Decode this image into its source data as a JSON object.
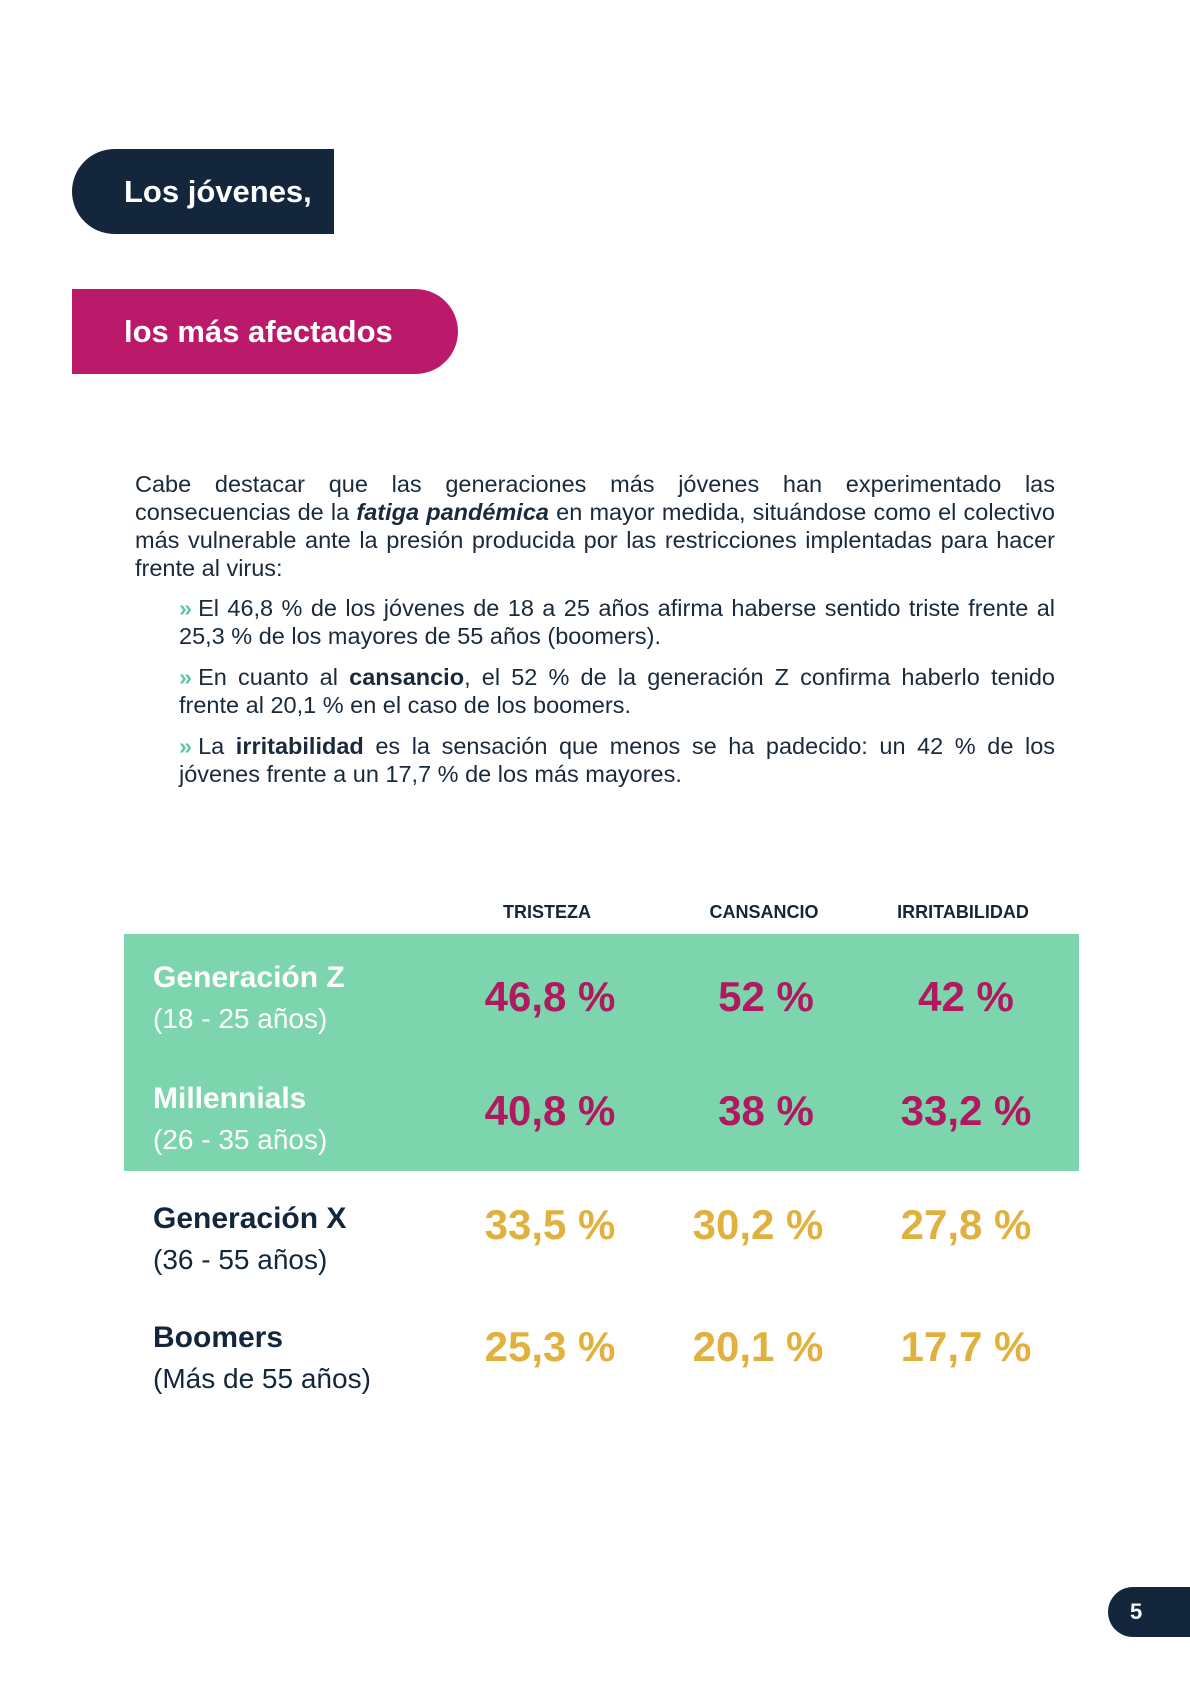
{
  "heading": {
    "line1": "Los jóvenes,",
    "line2": "los más afectados"
  },
  "intro": {
    "p1_a": "Cabe destacar que las generaciones más jóvenes han experimentado las consecuencias de la ",
    "p1_em": "fatiga pandémica",
    "p1_b": " en mayor medida, situándose como el colectivo más vulnerable ante la presión producida por las restricciones implentadas para hacer frente al virus:",
    "b1": "El 46,8 % de los jóvenes de 18 a 25 años afirma haberse sentido triste frente al 25,3 % de los mayores de 55 años (boomers).",
    "b2_a": "En cuanto al ",
    "b2_b": "cansancio",
    "b2_c": ", el 52 % de la generación Z confirma haberlo tenido frente al 20,1 % en el caso de los boomers.",
    "b3_a": "La ",
    "b3_b": "irritabilidad",
    "b3_c": " es la sensación que menos se ha padecido: un 42 % de los jóvenes frente a un 17,7 % de los más mayores.",
    "chevron": "»"
  },
  "table": {
    "columns": [
      "TRISTEZA",
      "CANSANCIO",
      "IRRITABILIDAD"
    ],
    "rows": [
      {
        "name": "Generación Z",
        "range": "(18 - 25 años)",
        "values": [
          "46,8 %",
          "52 %",
          "42 %"
        ]
      },
      {
        "name": "Millennials",
        "range": "(26 - 35 años)",
        "values": [
          "40,8 %",
          "38 %",
          "33,2 %"
        ]
      },
      {
        "name": "Generación X",
        "range": "(36 - 55 años)",
        "values": [
          "33,5 %",
          "30,2 %",
          "27,8 %"
        ]
      },
      {
        "name": "Boomers",
        "range": "(Más de 55 años)",
        "values": [
          "25,3 %",
          "20,1 %",
          "17,7 %"
        ]
      }
    ]
  },
  "colors": {
    "navy": "#13263b",
    "magenta": "#bb1a6b",
    "mint": "#7dd5ad",
    "gold": "#e1b13f"
  },
  "page_number": "5"
}
